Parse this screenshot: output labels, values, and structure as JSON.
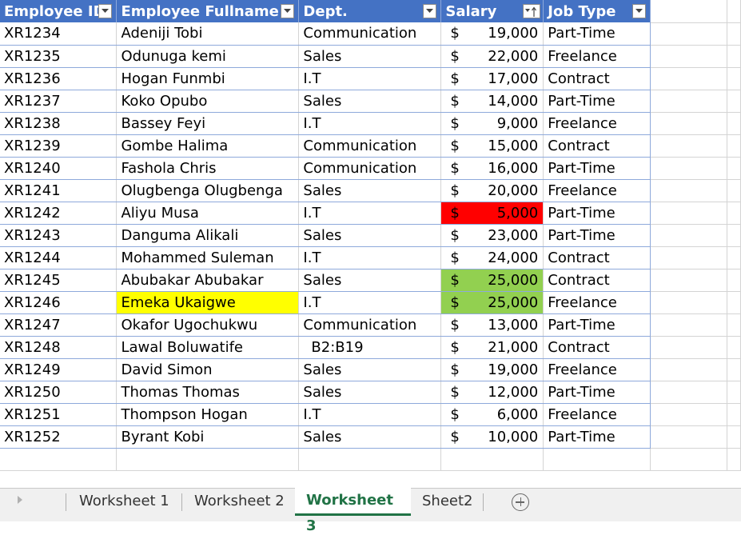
{
  "headers": {
    "employee_id": "Employee ID",
    "fullname": "Employee Fullname",
    "dept": "Dept.",
    "salary": "Salary",
    "job_type": "Job Type"
  },
  "currency_symbol": "$",
  "rows": [
    {
      "id": "XR1234",
      "name": "Adeniji Tobi",
      "dept": "Communication",
      "salary": "19,000",
      "job": "Part-Time"
    },
    {
      "id": "XR1235",
      "name": "Odunuga kemi",
      "dept": "Sales",
      "salary": "22,000",
      "job": "Freelance"
    },
    {
      "id": "XR1236",
      "name": "Hogan Funmbi",
      "dept": "I.T",
      "salary": "17,000",
      "job": "Contract"
    },
    {
      "id": "XR1237",
      "name": "Koko Opubo",
      "dept": "Sales",
      "salary": "14,000",
      "job": "Part-Time"
    },
    {
      "id": "XR1238",
      "name": "Bassey Feyi",
      "dept": "I.T",
      "salary": "9,000",
      "job": "Freelance"
    },
    {
      "id": "XR1239",
      "name": "Gombe Halima",
      "dept": "Communication",
      "salary": "15,000",
      "job": "Contract"
    },
    {
      "id": "XR1240",
      "name": "Fashola Chris",
      "dept": "Communication",
      "salary": "16,000",
      "job": "Part-Time"
    },
    {
      "id": "XR1241",
      "name": "Olugbenga Olugbenga",
      "dept": "Sales",
      "salary": "20,000",
      "job": "Freelance"
    },
    {
      "id": "XR1242",
      "name": "Aliyu Musa",
      "dept": "I.T",
      "salary": "5,000",
      "job": "Part-Time"
    },
    {
      "id": "XR1243",
      "name": "Danguma Alikali",
      "dept": "Sales",
      "salary": "23,000",
      "job": "Part-Time"
    },
    {
      "id": "XR1244",
      "name": "Mohammed Suleman",
      "dept": "I.T",
      "salary": "24,000",
      "job": "Contract"
    },
    {
      "id": "XR1245",
      "name": "Abubakar Abubakar",
      "dept": "Sales",
      "salary": "25,000",
      "job": "Contract"
    },
    {
      "id": "XR1246",
      "name": "Emeka Ukaigwe",
      "dept": "I.T",
      "salary": "25,000",
      "job": "Freelance"
    },
    {
      "id": "XR1247",
      "name": "Okafor Ugochukwu",
      "dept": "Communication",
      "salary": "13,000",
      "job": "Part-Time"
    },
    {
      "id": "XR1248",
      "name": "Lawal Boluwatife",
      "dept": "B2:B19",
      "salary": "21,000",
      "job": "Contract"
    },
    {
      "id": "XR1249",
      "name": "David Simon",
      "dept": "Sales",
      "salary": "19,000",
      "job": "Freelance"
    },
    {
      "id": "XR1250",
      "name": "Thomas Thomas",
      "dept": "Sales",
      "salary": "12,000",
      "job": "Part-Time"
    },
    {
      "id": "XR1251",
      "name": "Thompson Hogan",
      "dept": "I.T",
      "salary": "6,000",
      "job": "Freelance"
    },
    {
      "id": "XR1252",
      "name": "Byrant Kobi",
      "dept": "Sales",
      "salary": "10,000",
      "job": "Part-Time"
    }
  ],
  "highlights": {
    "salary_red_row": 8,
    "salary_green_rows": [
      11,
      12
    ],
    "name_yellow_row": 12
  },
  "colors": {
    "header_fill": "#4472c4",
    "red_fill": "#ff0000",
    "green_fill": "#92d050",
    "yellow_fill": "#ffff00",
    "active_tab_text": "#217346"
  },
  "tabs": [
    {
      "label": "Worksheet 1",
      "active": false
    },
    {
      "label": "Worksheet 2",
      "active": false
    },
    {
      "label": "Worksheet 3",
      "active": true
    },
    {
      "label": "Sheet2",
      "active": false
    }
  ],
  "icons": {
    "filter": "filter-dropdown-icon",
    "sort": "sort-ascending-filter-icon",
    "add_sheet": "plus-circle-icon",
    "scroll": "scroll-left-icon"
  }
}
